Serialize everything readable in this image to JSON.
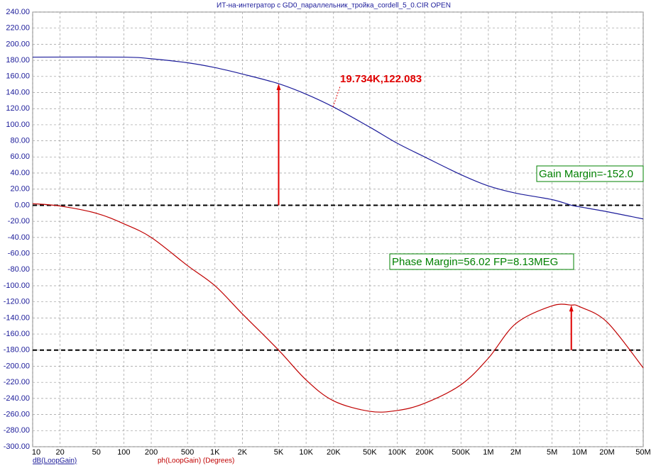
{
  "chart_data": {
    "type": "line",
    "title": "ИТ-на-интегратор с GD0_параллельник_тройка_cordell_5_0.CIR OPEN",
    "log_x": true,
    "grid": true,
    "xlim": [
      10,
      50000000
    ],
    "ylim": [
      -300,
      240
    ],
    "xticks": [
      10,
      20,
      50,
      100,
      200,
      500,
      {
        "value": 1000,
        "label": "1K"
      },
      {
        "value": 2000,
        "label": "2K"
      },
      {
        "value": 5000,
        "label": "5K"
      },
      {
        "value": 10000,
        "label": "10K"
      },
      {
        "value": 20000,
        "label": "20K"
      },
      {
        "value": 50000,
        "label": "50K"
      },
      {
        "value": 100000,
        "label": "100K"
      },
      {
        "value": 200000,
        "label": "200K"
      },
      {
        "value": 500000,
        "label": "500K"
      },
      {
        "value": 1000000,
        "label": "1M"
      },
      {
        "value": 2000000,
        "label": "2M"
      },
      {
        "value": 5000000,
        "label": "5M"
      },
      {
        "value": 10000000,
        "label": "10M"
      },
      {
        "value": 20000000,
        "label": "20M"
      },
      {
        "value": 50000000,
        "label": "50M"
      }
    ],
    "yticks": [
      {
        "value": 240,
        "label": "240.00"
      },
      {
        "value": 220,
        "label": "220.00"
      },
      {
        "value": 200,
        "label": "200.00"
      },
      {
        "value": 180,
        "label": "180.00"
      },
      {
        "value": 160,
        "label": "160.00"
      },
      {
        "value": 140,
        "label": "140.00"
      },
      {
        "value": 120,
        "label": "120.00"
      },
      {
        "value": 100,
        "label": "100.00"
      },
      {
        "value": 80,
        "label": "80.00"
      },
      {
        "value": 60,
        "label": "60.00"
      },
      {
        "value": 40,
        "label": "40.00"
      },
      {
        "value": 20,
        "label": "20.00"
      },
      {
        "value": 0,
        "label": "0.00"
      },
      {
        "value": -20,
        "label": "-20.00"
      },
      {
        "value": -40,
        "label": "-40.00"
      },
      {
        "value": -60,
        "label": "-60.00"
      },
      {
        "value": -80,
        "label": "-80.00"
      },
      {
        "value": -100,
        "label": "-100.00"
      },
      {
        "value": -120,
        "label": "-120.00"
      },
      {
        "value": -140,
        "label": "-140.00"
      },
      {
        "value": -160,
        "label": "-160.00"
      },
      {
        "value": -180,
        "label": "-180.00"
      },
      {
        "value": -200,
        "label": "-200.00"
      },
      {
        "value": -220,
        "label": "-220.00"
      },
      {
        "value": -240,
        "label": "-240.00"
      },
      {
        "value": -260,
        "label": "-260.00"
      },
      {
        "value": -280,
        "label": "-280.00"
      },
      {
        "value": -300,
        "label": "-300.00"
      }
    ],
    "series": [
      {
        "name": "dB(LoopGain)",
        "color": "#1c1c9a",
        "x": [
          10,
          100,
          200,
          500,
          1000,
          2000,
          5000,
          10000,
          20000,
          50000,
          100000,
          200000,
          500000,
          1000000,
          2000000,
          5000000,
          8130000,
          10000000,
          20000000,
          50000000
        ],
        "values": [
          184,
          184,
          182,
          177,
          171,
          163,
          151,
          138,
          122,
          97,
          77,
          60,
          38,
          24,
          15,
          7,
          0,
          -2,
          -8,
          -17
        ]
      },
      {
        "name": "ph(LoopGain) (Degrees)",
        "color": "#c00000",
        "x": [
          10,
          20,
          50,
          100,
          200,
          500,
          1000,
          2000,
          5000,
          10000,
          20000,
          50000,
          100000,
          200000,
          500000,
          1000000,
          2000000,
          5000000,
          8130000,
          10000000,
          20000000,
          50000000
        ],
        "values": [
          2,
          -1,
          -10,
          -23,
          -40,
          -75,
          -100,
          -135,
          -180,
          -217,
          -243,
          -256,
          -255,
          -246,
          -223,
          -190,
          -147,
          -125,
          -124,
          -126,
          -145,
          -202
        ]
      }
    ],
    "reference_lines": [
      0,
      -180
    ],
    "arrows": [
      {
        "x": 5000,
        "from": 0,
        "to": 151
      },
      {
        "x": 8130000,
        "from": -180,
        "to": -124
      }
    ],
    "point_label": {
      "text": "19.734K,122.083",
      "x": 19734,
      "y": 122.083
    },
    "annotations": [
      "Gain Margin=-152.0",
      "Phase Margin=56.02 FP=8.13MEG"
    ]
  }
}
